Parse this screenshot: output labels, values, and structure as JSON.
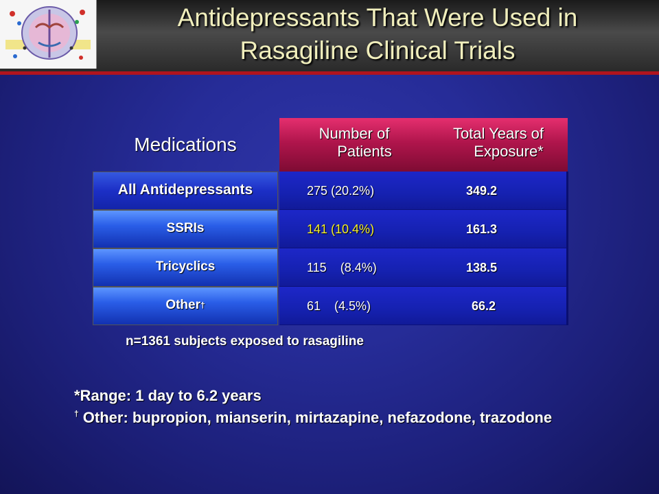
{
  "title": {
    "line1": "Antidepressants That Were Used in",
    "line2": "Rasagiline Clinical Trials"
  },
  "logo_icon": "brain-scan-logo-icon",
  "table": {
    "headers": {
      "medications": "Medications",
      "patients_l1": "Number of",
      "patients_l2": "Patients",
      "exposure_l1": "Total Years of",
      "exposure_l2": "Exposure*"
    },
    "rows": [
      {
        "label": "All Antidepressants",
        "patients": "275 (20.2%)",
        "exposure": "349.2"
      },
      {
        "label": "SSRIs",
        "patients": "141 (10.4%)",
        "exposure": "161.3"
      },
      {
        "label": "Tricyclics",
        "patients": "115    (8.4%)",
        "exposure": "138.5"
      },
      {
        "label": "Other",
        "label_mark": "†",
        "patients": "61    (4.5%)",
        "exposure": "66.2"
      }
    ]
  },
  "note": "n=1361 subjects exposed to rasagiline",
  "footnotes": {
    "range": "*Range:  1 day to 6.2 years",
    "other_mark": "†",
    "other": " Other:  bupropion, mianserin, mirtazapine, nefazodone, trazodone"
  },
  "colors": {
    "title_text": "#f0eebc",
    "header_red": "#b0154c",
    "highlight_yellow": "#f4ee28",
    "rule_red": "#b0141e"
  }
}
